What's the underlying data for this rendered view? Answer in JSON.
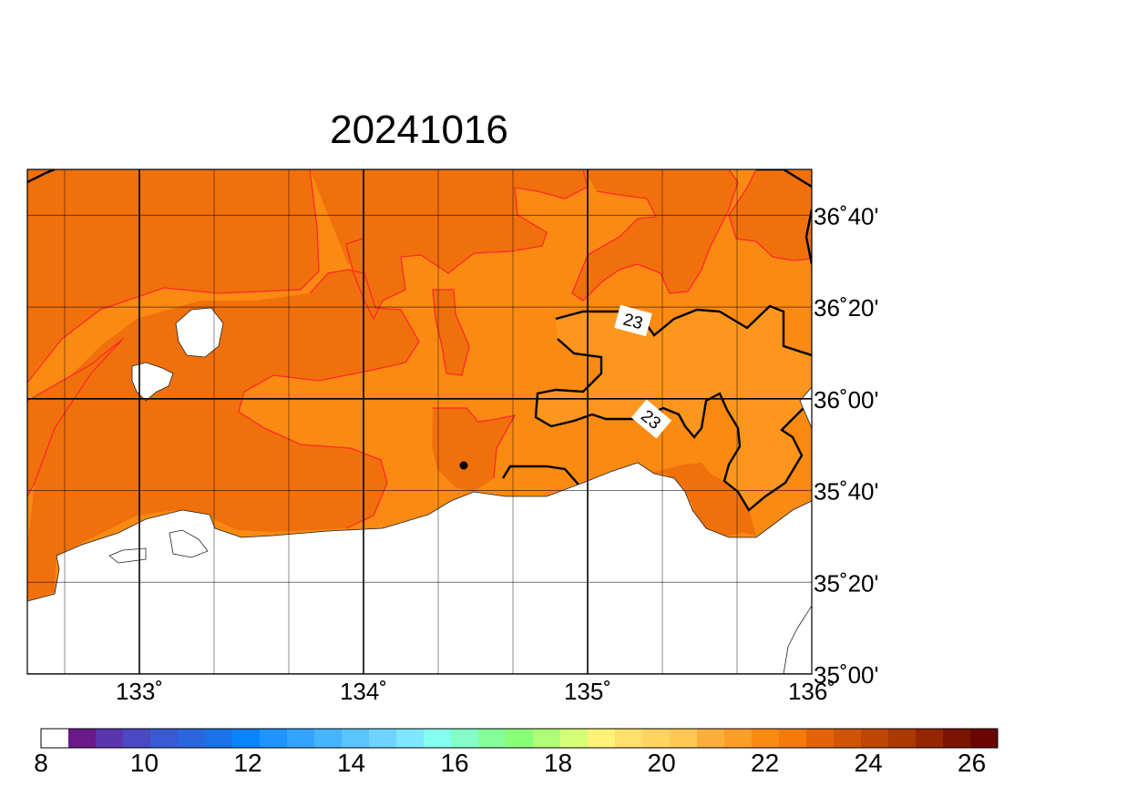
{
  "title": "20241016",
  "map": {
    "lon_range": [
      132.5,
      136.0
    ],
    "lat_range": [
      35.0,
      36.8333
    ],
    "lon_ticks": [
      "133˚",
      "134˚",
      "135˚",
      "136˚"
    ],
    "lat_ticks": [
      "35˚00'",
      "35˚20'",
      "35˚40'",
      "36˚00'",
      "36˚20'",
      "36˚40'"
    ],
    "contour_labels": [
      "23",
      "23"
    ],
    "grid": true,
    "land_color": "#ffffff",
    "colors": {
      "sst_22_23": "#fb8a12",
      "sst_23_24": "#f0700c",
      "sst_24_plus": "#e36306",
      "contour_main": "#000000",
      "contour_fill_edge": "#ff2a2a"
    }
  },
  "colorbar": {
    "min": 8,
    "max": 26.5,
    "labels": [
      "8",
      "10",
      "12",
      "14",
      "16",
      "18",
      "20",
      "22",
      "24",
      "26"
    ],
    "colors": [
      "#ffffff",
      "#6a1a8a",
      "#5a35ad",
      "#4a48c2",
      "#3a5ad4",
      "#2a66de",
      "#1a72e8",
      "#0a84ff",
      "#1e94ff",
      "#32a4ff",
      "#46b4ff",
      "#5ac4ff",
      "#6ed4ff",
      "#7ee6ff",
      "#84fff0",
      "#84ffc8",
      "#84ff9a",
      "#8aff78",
      "#b0ff78",
      "#d6ff78",
      "#fff278",
      "#ffe06c",
      "#ffd460",
      "#ffc854",
      "#fcae3c",
      "#fb9e28",
      "#fb8a12",
      "#f57a0c",
      "#e36306",
      "#cf5405",
      "#bf4604",
      "#ac3803",
      "#962602",
      "#7c1402",
      "#6a0601"
    ]
  }
}
